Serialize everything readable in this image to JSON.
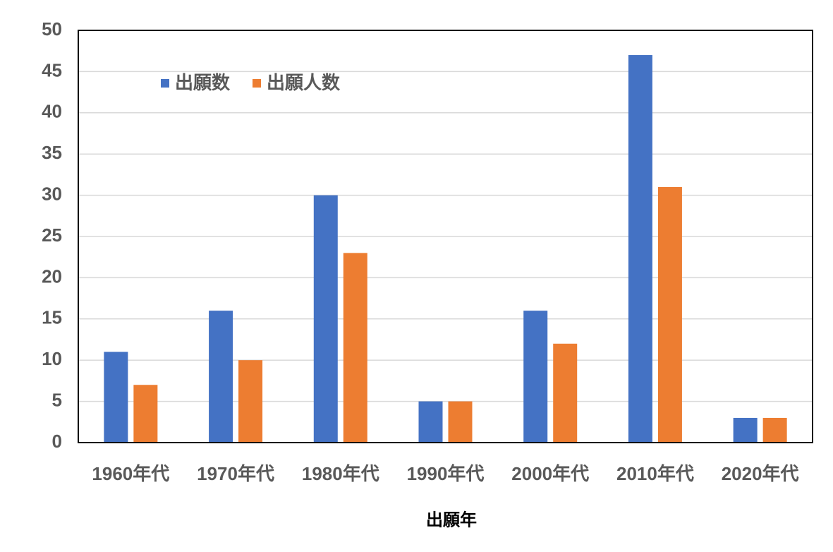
{
  "chart_data": {
    "type": "bar",
    "x_label": "出願年",
    "categories": [
      "1960年代",
      "1970年代",
      "1980年代",
      "1990年代",
      "2000年代",
      "2010年代",
      "2020年代"
    ],
    "series": [
      {
        "name": "出願数",
        "color": "#4472c4",
        "values": [
          11,
          16,
          30,
          5,
          16,
          47,
          3
        ]
      },
      {
        "name": "出願人数",
        "color": "#ed7d31",
        "values": [
          7,
          10,
          23,
          5,
          12,
          31,
          3
        ]
      }
    ],
    "ylim": [
      0,
      50
    ],
    "yticks": [
      0,
      5,
      10,
      15,
      20,
      25,
      30,
      35,
      40,
      45,
      50
    ],
    "grid": true,
    "legend": "upper left"
  }
}
